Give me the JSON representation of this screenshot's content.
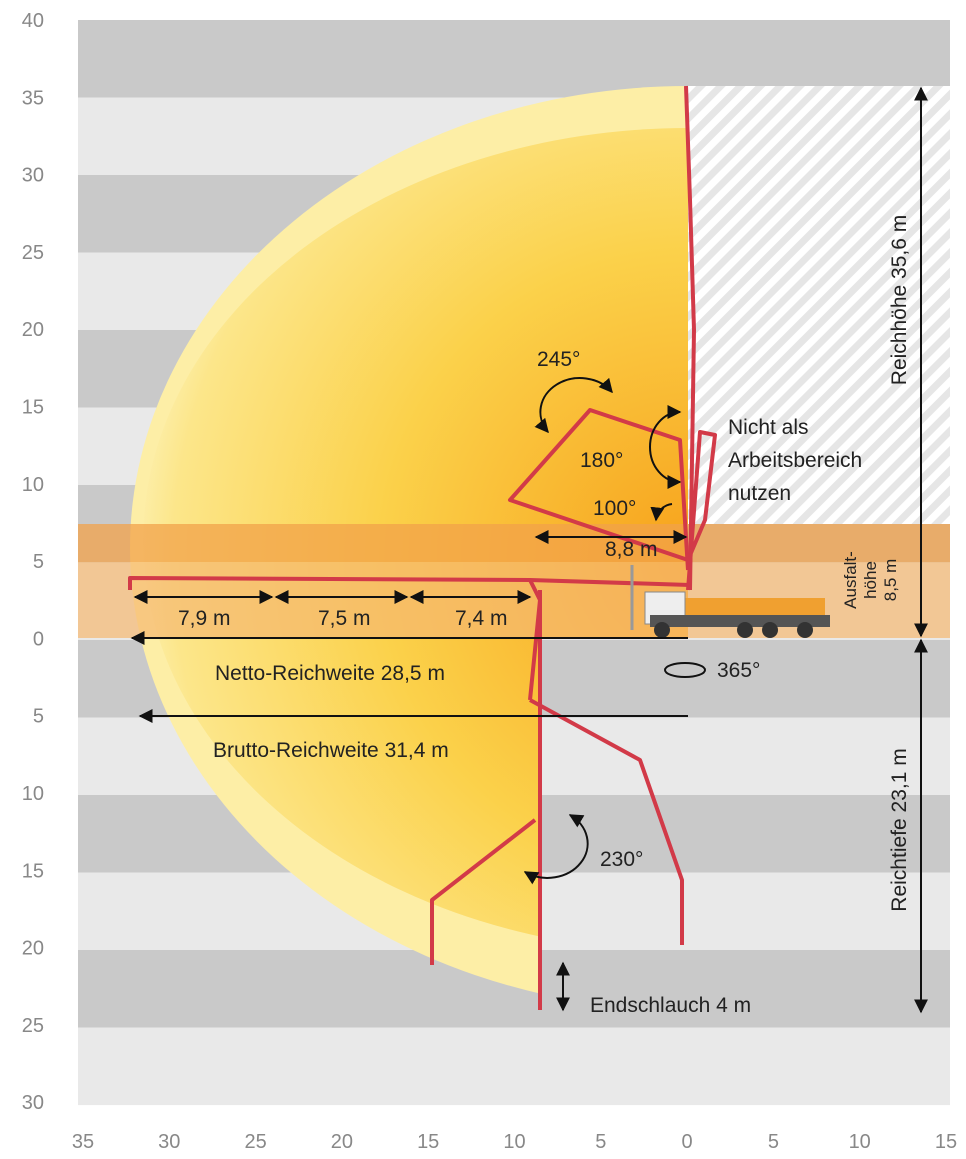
{
  "y_axis_labels": [
    "40",
    "35",
    "30",
    "25",
    "20",
    "15",
    "10",
    "5",
    "0",
    "5",
    "10",
    "15",
    "20",
    "25",
    "30"
  ],
  "x_axis_labels": [
    "35",
    "30",
    "25",
    "20",
    "15",
    "10",
    "5",
    "0",
    "5",
    "10",
    "15"
  ],
  "annotations": {
    "rot245": "245°",
    "rot180": "180°",
    "rot100": "100°",
    "warning": [
      "Nicht als",
      "Arbeitsbereich",
      "nutzen"
    ],
    "seg88": "8,8 m",
    "seg79": "7,9 m",
    "seg75": "7,5 m",
    "seg74": "7,4 m",
    "netto": "Netto-Reichweite 28,5 m",
    "brutto": "Brutto-Reichweite 31,4 m",
    "rot365": "365°",
    "rot230": "230°",
    "hose": "Endschlauch 4 m",
    "height": "Reichhöhe 35,6 m",
    "depth": "Reichtiefe 23,1 m",
    "unfold": [
      "Ausfalt-",
      "höhe",
      "8,5 m"
    ]
  }
}
